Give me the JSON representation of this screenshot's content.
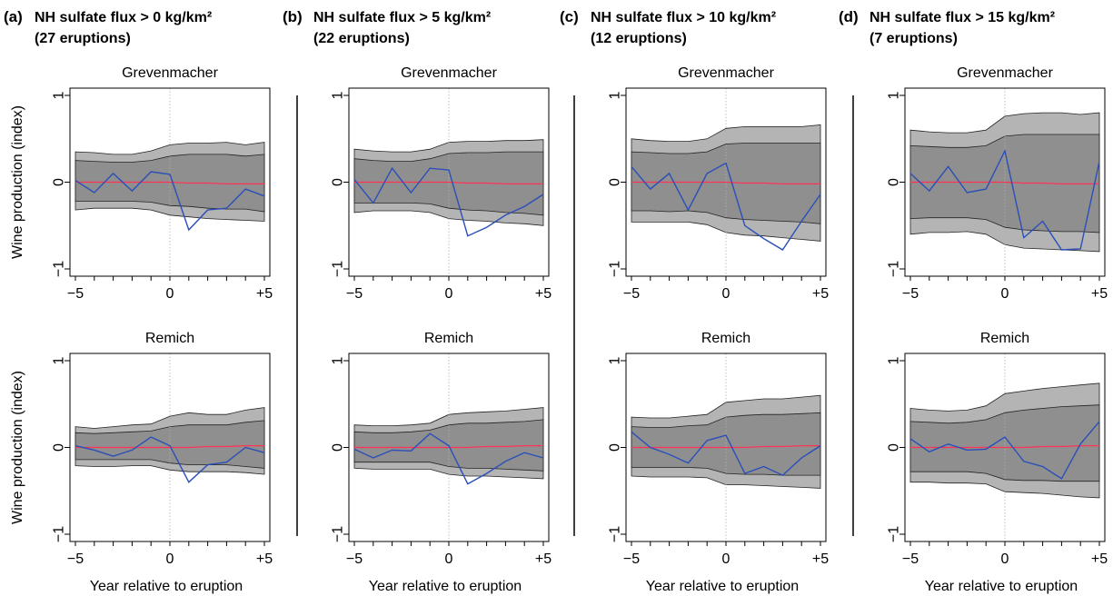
{
  "ylabel": "Wine production (index)",
  "xlabel": "Year relative to eruption",
  "colors": {
    "outer_band": "#b4b4b4",
    "inner_band": "#8f8f8f",
    "observed_line": "#2b4fb8",
    "mean_line": "#ff3355"
  },
  "chart_data": [
    {
      "type": "line",
      "tag": "(a)",
      "title_line1": "NH sulfate flux > 0 kg/km²",
      "title_line2": "(27 eruptions)",
      "subplots": [
        {
          "site": "Grevenmacher",
          "x": [
            -5,
            -4,
            -3,
            -2,
            -1,
            0,
            1,
            2,
            3,
            4,
            5
          ],
          "outer_upper": [
            0.35,
            0.34,
            0.32,
            0.32,
            0.36,
            0.43,
            0.45,
            0.45,
            0.46,
            0.43,
            0.46
          ],
          "inner_upper": [
            0.25,
            0.24,
            0.23,
            0.23,
            0.25,
            0.3,
            0.32,
            0.32,
            0.32,
            0.3,
            0.32
          ],
          "inner_lower": [
            -0.22,
            -0.22,
            -0.22,
            -0.22,
            -0.23,
            -0.27,
            -0.28,
            -0.3,
            -0.31,
            -0.31,
            -0.34
          ],
          "outer_lower": [
            -0.32,
            -0.3,
            -0.3,
            -0.3,
            -0.32,
            -0.38,
            -0.4,
            -0.42,
            -0.43,
            -0.44,
            -0.45
          ],
          "mean": [
            0,
            0,
            0,
            0,
            0,
            0,
            -0.01,
            -0.01,
            -0.02,
            -0.02,
            -0.02
          ],
          "observed": [
            0.02,
            -0.12,
            0.1,
            -0.1,
            0.12,
            0.09,
            -0.55,
            -0.32,
            -0.3,
            -0.08,
            -0.16
          ]
        },
        {
          "site": "Remich",
          "x": [
            -5,
            -4,
            -3,
            -2,
            -1,
            0,
            1,
            2,
            3,
            4,
            5
          ],
          "outer_upper": [
            0.24,
            0.22,
            0.24,
            0.26,
            0.27,
            0.36,
            0.4,
            0.38,
            0.38,
            0.43,
            0.46
          ],
          "inner_upper": [
            0.17,
            0.16,
            0.17,
            0.18,
            0.19,
            0.24,
            0.26,
            0.26,
            0.26,
            0.29,
            0.31
          ],
          "inner_lower": [
            -0.14,
            -0.14,
            -0.14,
            -0.14,
            -0.14,
            -0.18,
            -0.2,
            -0.2,
            -0.2,
            -0.22,
            -0.24
          ],
          "outer_lower": [
            -0.21,
            -0.22,
            -0.22,
            -0.21,
            -0.21,
            -0.26,
            -0.28,
            -0.28,
            -0.28,
            -0.29,
            -0.31
          ],
          "mean": [
            0,
            0,
            0,
            0,
            0,
            0,
            0,
            0.01,
            0.01,
            0.02,
            0.02
          ],
          "observed": [
            0.02,
            -0.03,
            -0.1,
            -0.03,
            0.12,
            0.02,
            -0.4,
            -0.2,
            -0.17,
            0,
            -0.06
          ]
        }
      ]
    },
    {
      "type": "line",
      "tag": "(b)",
      "title_line1": "NH sulfate flux > 5 kg/km²",
      "title_line2": "(22 eruptions)",
      "subplots": [
        {
          "site": "Grevenmacher",
          "x": [
            -5,
            -4,
            -3,
            -2,
            -1,
            0,
            1,
            2,
            3,
            4,
            5
          ],
          "outer_upper": [
            0.38,
            0.36,
            0.35,
            0.35,
            0.38,
            0.46,
            0.47,
            0.47,
            0.48,
            0.48,
            0.49
          ],
          "inner_upper": [
            0.27,
            0.25,
            0.24,
            0.24,
            0.27,
            0.33,
            0.34,
            0.34,
            0.35,
            0.35,
            0.35
          ],
          "inner_lower": [
            -0.24,
            -0.24,
            -0.24,
            -0.24,
            -0.25,
            -0.3,
            -0.32,
            -0.33,
            -0.35,
            -0.36,
            -0.38
          ],
          "outer_lower": [
            -0.35,
            -0.33,
            -0.33,
            -0.33,
            -0.35,
            -0.42,
            -0.44,
            -0.45,
            -0.47,
            -0.48,
            -0.5
          ],
          "mean": [
            0,
            0,
            0,
            0,
            0,
            0,
            -0.01,
            -0.01,
            -0.02,
            -0.02,
            -0.02
          ],
          "observed": [
            0.03,
            -0.24,
            0.16,
            -0.12,
            0.16,
            0.14,
            -0.62,
            -0.52,
            -0.38,
            -0.28,
            -0.14
          ]
        },
        {
          "site": "Remich",
          "x": [
            -5,
            -4,
            -3,
            -2,
            -1,
            0,
            1,
            2,
            3,
            4,
            5
          ],
          "outer_upper": [
            0.26,
            0.25,
            0.25,
            0.26,
            0.28,
            0.38,
            0.4,
            0.41,
            0.42,
            0.44,
            0.46
          ],
          "inner_upper": [
            0.18,
            0.17,
            0.17,
            0.18,
            0.2,
            0.26,
            0.28,
            0.28,
            0.29,
            0.3,
            0.32
          ],
          "inner_lower": [
            -0.17,
            -0.17,
            -0.17,
            -0.17,
            -0.17,
            -0.22,
            -0.24,
            -0.24,
            -0.25,
            -0.26,
            -0.27
          ],
          "outer_lower": [
            -0.24,
            -0.25,
            -0.25,
            -0.25,
            -0.25,
            -0.31,
            -0.33,
            -0.33,
            -0.34,
            -0.35,
            -0.36
          ],
          "mean": [
            0,
            0,
            0,
            0,
            0,
            0,
            0,
            0.01,
            0.01,
            0.02,
            0.02
          ],
          "observed": [
            -0.02,
            -0.12,
            -0.03,
            -0.04,
            0.16,
            0.02,
            -0.42,
            -0.3,
            -0.16,
            -0.06,
            -0.12
          ]
        }
      ]
    },
    {
      "type": "line",
      "tag": "(c)",
      "title_line1": "NH sulfate flux > 10 kg/km²",
      "title_line2": "(12 eruptions)",
      "subplots": [
        {
          "site": "Grevenmacher",
          "x": [
            -5,
            -4,
            -3,
            -2,
            -1,
            0,
            1,
            2,
            3,
            4,
            5
          ],
          "outer_upper": [
            0.5,
            0.48,
            0.47,
            0.47,
            0.5,
            0.62,
            0.64,
            0.64,
            0.64,
            0.64,
            0.66
          ],
          "inner_upper": [
            0.35,
            0.34,
            0.33,
            0.33,
            0.35,
            0.44,
            0.45,
            0.45,
            0.45,
            0.45,
            0.45
          ],
          "inner_lower": [
            -0.33,
            -0.33,
            -0.34,
            -0.33,
            -0.35,
            -0.41,
            -0.43,
            -0.44,
            -0.45,
            -0.46,
            -0.48
          ],
          "outer_lower": [
            -0.46,
            -0.46,
            -0.46,
            -0.46,
            -0.49,
            -0.58,
            -0.61,
            -0.62,
            -0.64,
            -0.66,
            -0.68
          ],
          "mean": [
            0,
            0,
            0,
            0,
            0,
            0,
            -0.01,
            -0.01,
            -0.02,
            -0.02,
            -0.02
          ],
          "observed": [
            0.18,
            -0.08,
            0.1,
            -0.32,
            0.1,
            0.22,
            -0.5,
            -0.65,
            -0.78,
            -0.45,
            -0.14
          ]
        },
        {
          "site": "Remich",
          "x": [
            -5,
            -4,
            -3,
            -2,
            -1,
            0,
            1,
            2,
            3,
            4,
            5
          ],
          "outer_upper": [
            0.35,
            0.34,
            0.34,
            0.36,
            0.38,
            0.52,
            0.54,
            0.56,
            0.56,
            0.58,
            0.6
          ],
          "inner_upper": [
            0.24,
            0.23,
            0.23,
            0.25,
            0.26,
            0.35,
            0.37,
            0.38,
            0.38,
            0.39,
            0.4
          ],
          "inner_lower": [
            -0.23,
            -0.23,
            -0.23,
            -0.23,
            -0.24,
            -0.3,
            -0.31,
            -0.31,
            -0.32,
            -0.32,
            -0.32
          ],
          "outer_lower": [
            -0.33,
            -0.34,
            -0.34,
            -0.34,
            -0.35,
            -0.43,
            -0.43,
            -0.44,
            -0.45,
            -0.46,
            -0.47
          ],
          "mean": [
            0,
            0,
            0,
            0,
            0,
            0,
            0,
            0.01,
            0.01,
            0.02,
            0.02
          ],
          "observed": [
            0.18,
            0,
            -0.08,
            -0.18,
            0.08,
            0.14,
            -0.3,
            -0.22,
            -0.32,
            -0.12,
            0.02
          ]
        }
      ]
    },
    {
      "type": "line",
      "tag": "(d)",
      "title_line1": "NH sulfate flux > 15 kg/km²",
      "title_line2": "(7 eruptions)",
      "subplots": [
        {
          "site": "Grevenmacher",
          "x": [
            -5,
            -4,
            -3,
            -2,
            -1,
            0,
            1,
            2,
            3,
            4,
            5
          ],
          "outer_upper": [
            0.6,
            0.58,
            0.57,
            0.57,
            0.6,
            0.76,
            0.79,
            0.8,
            0.8,
            0.78,
            0.8
          ],
          "inner_upper": [
            0.42,
            0.41,
            0.4,
            0.4,
            0.42,
            0.53,
            0.55,
            0.55,
            0.55,
            0.55,
            0.55
          ],
          "inner_lower": [
            -0.42,
            -0.41,
            -0.41,
            -0.41,
            -0.43,
            -0.52,
            -0.55,
            -0.56,
            -0.57,
            -0.57,
            -0.58
          ],
          "outer_lower": [
            -0.6,
            -0.58,
            -0.58,
            -0.57,
            -0.6,
            -0.72,
            -0.76,
            -0.77,
            -0.78,
            -0.79,
            -0.8
          ],
          "mean": [
            0,
            0,
            0,
            0,
            0,
            0,
            -0.01,
            -0.01,
            -0.02,
            -0.02,
            -0.02
          ],
          "observed": [
            0.1,
            -0.1,
            0.18,
            -0.12,
            -0.08,
            0.36,
            -0.64,
            -0.45,
            -0.78,
            -0.77,
            0.24
          ]
        },
        {
          "site": "Remich",
          "x": [
            -5,
            -4,
            -3,
            -2,
            -1,
            0,
            1,
            2,
            3,
            4,
            5
          ],
          "outer_upper": [
            0.45,
            0.43,
            0.42,
            0.43,
            0.48,
            0.62,
            0.65,
            0.68,
            0.7,
            0.72,
            0.74
          ],
          "inner_upper": [
            0.3,
            0.29,
            0.28,
            0.29,
            0.32,
            0.4,
            0.43,
            0.45,
            0.47,
            0.48,
            0.49
          ],
          "inner_lower": [
            -0.28,
            -0.28,
            -0.28,
            -0.28,
            -0.3,
            -0.37,
            -0.38,
            -0.38,
            -0.39,
            -0.39,
            -0.39
          ],
          "outer_lower": [
            -0.4,
            -0.4,
            -0.41,
            -0.41,
            -0.42,
            -0.51,
            -0.52,
            -0.53,
            -0.55,
            -0.57,
            -0.58
          ],
          "mean": [
            0,
            0,
            0,
            0,
            0,
            0,
            0,
            0.01,
            0.01,
            0.02,
            0.02
          ],
          "observed": [
            0.1,
            -0.05,
            0.04,
            -0.03,
            -0.02,
            0.12,
            -0.16,
            -0.22,
            -0.36,
            0.04,
            0.3
          ]
        }
      ]
    }
  ]
}
